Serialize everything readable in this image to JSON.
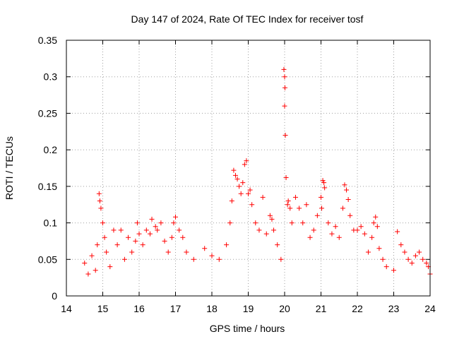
{
  "chart_data": {
    "type": "scatter",
    "title": "Day 147 of 2024, Rate Of TEC Index for receiver tosf",
    "xlabel": "GPS time / hours",
    "ylabel": "ROTI / TECUs",
    "xlim": [
      14,
      24
    ],
    "ylim": [
      0,
      0.35
    ],
    "x_ticks": [
      14,
      15,
      16,
      17,
      18,
      19,
      20,
      21,
      22,
      23,
      24
    ],
    "y_ticks": [
      0,
      0.05,
      0.1,
      0.15,
      0.2,
      0.25,
      0.3,
      0.35
    ],
    "y_tick_labels": [
      "0",
      "0.05",
      "0.1",
      "0.15",
      "0.2",
      "0.25",
      "0.3",
      "0.35"
    ],
    "grid": true,
    "marker": "+",
    "color": "#ff0000",
    "series": [
      {
        "name": "ROTI",
        "points": [
          [
            14.5,
            0.045
          ],
          [
            14.6,
            0.03
          ],
          [
            14.7,
            0.055
          ],
          [
            14.8,
            0.035
          ],
          [
            14.85,
            0.07
          ],
          [
            14.9,
            0.14
          ],
          [
            14.92,
            0.13
          ],
          [
            14.95,
            0.12
          ],
          [
            15.0,
            0.1
          ],
          [
            15.05,
            0.08
          ],
          [
            15.1,
            0.06
          ],
          [
            15.2,
            0.04
          ],
          [
            15.3,
            0.09
          ],
          [
            15.4,
            0.07
          ],
          [
            15.5,
            0.09
          ],
          [
            15.6,
            0.05
          ],
          [
            15.7,
            0.08
          ],
          [
            15.8,
            0.06
          ],
          [
            15.9,
            0.075
          ],
          [
            15.95,
            0.1
          ],
          [
            16.0,
            0.085
          ],
          [
            16.1,
            0.07
          ],
          [
            16.2,
            0.09
          ],
          [
            16.3,
            0.085
          ],
          [
            16.35,
            0.105
          ],
          [
            16.45,
            0.095
          ],
          [
            16.5,
            0.09
          ],
          [
            16.6,
            0.1
          ],
          [
            16.7,
            0.075
          ],
          [
            16.8,
            0.06
          ],
          [
            16.9,
            0.08
          ],
          [
            16.95,
            0.1
          ],
          [
            17.0,
            0.108
          ],
          [
            17.1,
            0.09
          ],
          [
            17.2,
            0.08
          ],
          [
            17.3,
            0.06
          ],
          [
            17.5,
            0.05
          ],
          [
            17.8,
            0.065
          ],
          [
            18.0,
            0.055
          ],
          [
            18.2,
            0.05
          ],
          [
            18.4,
            0.07
          ],
          [
            18.5,
            0.1
          ],
          [
            18.55,
            0.13
          ],
          [
            18.6,
            0.172
          ],
          [
            18.65,
            0.165
          ],
          [
            18.7,
            0.16
          ],
          [
            18.75,
            0.15
          ],
          [
            18.8,
            0.14
          ],
          [
            18.85,
            0.155
          ],
          [
            18.9,
            0.18
          ],
          [
            18.95,
            0.185
          ],
          [
            19.0,
            0.14
          ],
          [
            19.05,
            0.145
          ],
          [
            19.1,
            0.125
          ],
          [
            19.2,
            0.1
          ],
          [
            19.3,
            0.09
          ],
          [
            19.4,
            0.135
          ],
          [
            19.5,
            0.085
          ],
          [
            19.6,
            0.11
          ],
          [
            19.65,
            0.105
          ],
          [
            19.7,
            0.09
          ],
          [
            19.8,
            0.07
          ],
          [
            19.9,
            0.05
          ],
          [
            19.98,
            0.31
          ],
          [
            20.0,
            0.3
          ],
          [
            20.01,
            0.285
          ],
          [
            20.0,
            0.26
          ],
          [
            20.02,
            0.22
          ],
          [
            20.04,
            0.162
          ],
          [
            20.08,
            0.125
          ],
          [
            20.1,
            0.13
          ],
          [
            20.15,
            0.12
          ],
          [
            20.2,
            0.1
          ],
          [
            20.3,
            0.135
          ],
          [
            20.4,
            0.12
          ],
          [
            20.5,
            0.1
          ],
          [
            20.6,
            0.125
          ],
          [
            20.7,
            0.08
          ],
          [
            20.8,
            0.09
          ],
          [
            20.9,
            0.11
          ],
          [
            21.0,
            0.135
          ],
          [
            21.02,
            0.12
          ],
          [
            21.05,
            0.158
          ],
          [
            21.08,
            0.155
          ],
          [
            21.1,
            0.148
          ],
          [
            21.2,
            0.1
          ],
          [
            21.3,
            0.085
          ],
          [
            21.4,
            0.095
          ],
          [
            21.5,
            0.08
          ],
          [
            21.6,
            0.12
          ],
          [
            21.65,
            0.152
          ],
          [
            21.7,
            0.145
          ],
          [
            21.75,
            0.132
          ],
          [
            21.8,
            0.11
          ],
          [
            21.9,
            0.09
          ],
          [
            22.0,
            0.09
          ],
          [
            22.1,
            0.095
          ],
          [
            22.2,
            0.085
          ],
          [
            22.3,
            0.06
          ],
          [
            22.4,
            0.08
          ],
          [
            22.45,
            0.1
          ],
          [
            22.5,
            0.108
          ],
          [
            22.55,
            0.095
          ],
          [
            22.6,
            0.065
          ],
          [
            22.7,
            0.05
          ],
          [
            22.8,
            0.04
          ],
          [
            23.0,
            0.035
          ],
          [
            23.1,
            0.088
          ],
          [
            23.2,
            0.07
          ],
          [
            23.3,
            0.06
          ],
          [
            23.4,
            0.05
          ],
          [
            23.5,
            0.045
          ],
          [
            23.6,
            0.055
          ],
          [
            23.7,
            0.06
          ],
          [
            23.8,
            0.05
          ],
          [
            23.9,
            0.045
          ],
          [
            23.95,
            0.04
          ],
          [
            24.0,
            0.03
          ]
        ]
      }
    ]
  }
}
